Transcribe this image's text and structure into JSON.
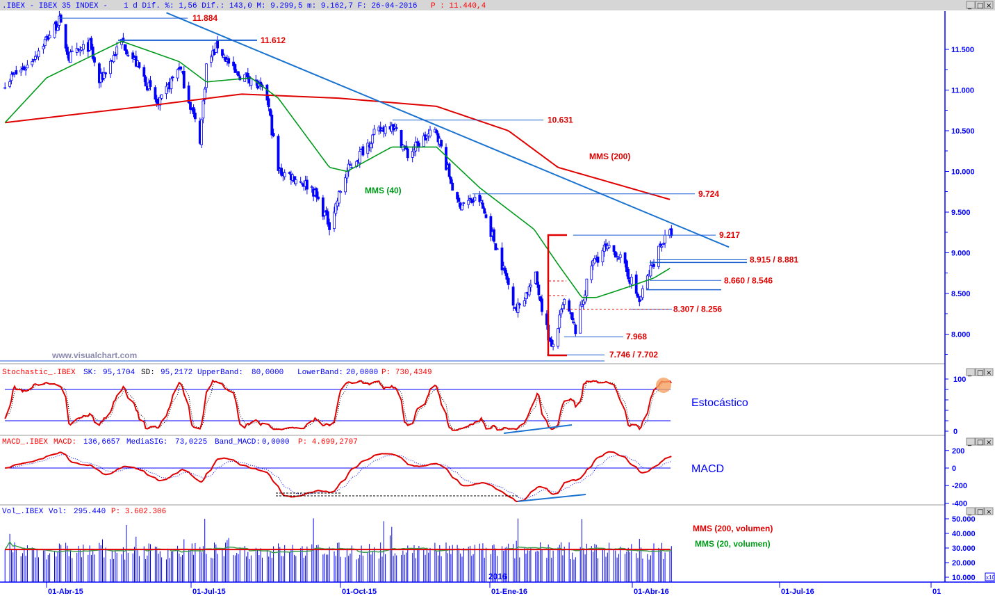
{
  "title_bar": {
    "symbol": ".IBEX - IBEX 35 INDEX -",
    "info": "1 d Dif. %: 1,56 Dif.: 143,0 M: 9.299,5 m: 9.162,7 F: 26-04-2016",
    "p": "P : 11.440,4"
  },
  "window_buttons": {
    "minimize": "_",
    "maximize": "□",
    "close": "×"
  },
  "colors": {
    "candle": "#0000ff",
    "mms200": "#e00000",
    "mms40": "#009a1a",
    "trendline": "#1a73d0",
    "level_line": "#1a5fd0",
    "label": "#e00000",
    "axis": "#0000ff"
  },
  "watermark": "www.visualchart.com",
  "price_panel": {
    "mms200_label": "MMS (200)",
    "mms40_label": "MMS (40)",
    "levels": [
      {
        "label": "11.884",
        "value": 11884
      },
      {
        "label": "11.612",
        "value": 11612
      },
      {
        "label": "10.631",
        "value": 10631
      },
      {
        "label": "9.724",
        "value": 9724
      },
      {
        "label": "9.217",
        "value": 9217
      },
      {
        "label": "8.915 / 8.881",
        "value": 8915
      },
      {
        "label": "8.660 / 8.546",
        "value": 8660
      },
      {
        "label": "8.307 / 8.256",
        "value": 8307
      },
      {
        "label": "7.968",
        "value": 7968
      },
      {
        "label": "7.746 / 7.702",
        "value": 7746
      }
    ],
    "y_ticks": [
      "11.500",
      "11.000",
      "10.500",
      "10.000",
      "9.500",
      "9.000",
      "8.500",
      "8.000"
    ]
  },
  "stoch_panel": {
    "header": {
      "name": "Stochastic_.IBEX",
      "sk_label": "SK:",
      "sk": "95,1704",
      "sd_label": "SD:",
      "sd": "95,2172",
      "ub_label": "UpperBand:",
      "ub": "80,0000",
      "lb_label": "LowerBand:",
      "lb": "20,0000",
      "p": "P: 730,4349"
    },
    "annotation": "Estocástico",
    "y_ticks": [
      "100",
      "0"
    ]
  },
  "macd_panel": {
    "header": {
      "name": "MACD_.IBEX",
      "macd_label": "MACD:",
      "macd": "136,6657",
      "sig_label": "MediaSIG:",
      "sig": "73,0225",
      "band_label": "Band_MACD:",
      "band": "0,0000",
      "p": "P: 4.699,2707"
    },
    "annotation": "MACD",
    "y_ticks": [
      "200",
      "0",
      "-200",
      "-400"
    ]
  },
  "vol_panel": {
    "header": {
      "name": "Vol_.IBEX",
      "vol_label": "Vol:",
      "vol": "295.440",
      "p": "P: 3.602.306"
    },
    "mms200_label": "MMS (200, volumen)",
    "mms20_label": "MMS (20, volumen)",
    "year_marker": "2016",
    "multiplier": "x10",
    "y_ticks": [
      "50.000",
      "40.000",
      "30.000",
      "20.000",
      "10.000"
    ]
  },
  "x_axis": {
    "ticks": [
      "01-Abr-15",
      "01-Jul-15",
      "01-Oct-15",
      "01-Ene-16",
      "01-Abr-16",
      "01-Jul-16",
      "01"
    ]
  },
  "chart_data": {
    "type": "candlestick",
    "title": ".IBEX - IBEX 35 INDEX",
    "ylim": [
      7600,
      11950
    ],
    "grid": false,
    "close_keypoints": [
      [
        "2015-03-06",
        11100
      ],
      [
        "2015-03-20",
        11300
      ],
      [
        "2015-04-09",
        11850
      ],
      [
        "2015-04-15",
        11400
      ],
      [
        "2015-04-28",
        11550
      ],
      [
        "2015-05-04",
        11100
      ],
      [
        "2015-05-18",
        11600
      ],
      [
        "2015-05-28",
        11300
      ],
      [
        "2015-06-10",
        10800
      ],
      [
        "2015-06-23",
        11300
      ],
      [
        "2015-07-06",
        10400
      ],
      [
        "2015-07-10",
        11300
      ],
      [
        "2015-07-17",
        11550
      ],
      [
        "2015-07-28",
        11200
      ],
      [
        "2015-08-07",
        11150
      ],
      [
        "2015-08-17",
        10900
      ],
      [
        "2015-08-24",
        10000
      ],
      [
        "2015-09-01",
        9950
      ],
      [
        "2015-09-14",
        9800
      ],
      [
        "2015-09-25",
        9350
      ],
      [
        "2015-10-06",
        10000
      ],
      [
        "2015-10-23",
        10450
      ],
      [
        "2015-11-03",
        10600
      ],
      [
        "2015-11-13",
        10200
      ],
      [
        "2015-11-23",
        10400
      ],
      [
        "2015-12-01",
        10500
      ],
      [
        "2015-12-14",
        9600
      ],
      [
        "2015-12-28",
        9650
      ],
      [
        "2016-01-07",
        9100
      ],
      [
        "2016-01-20",
        8300
      ],
      [
        "2016-02-01",
        8700
      ],
      [
        "2016-02-11",
        7800
      ],
      [
        "2016-02-19",
        8400
      ],
      [
        "2016-02-26",
        8050
      ],
      [
        "2016-03-07",
        8850
      ],
      [
        "2016-03-15",
        9050
      ],
      [
        "2016-03-23",
        9000
      ],
      [
        "2016-04-01",
        8650
      ],
      [
        "2016-04-06",
        8400
      ],
      [
        "2016-04-12",
        8750
      ],
      [
        "2016-04-19",
        9100
      ],
      [
        "2016-04-26",
        9250
      ]
    ],
    "mms40": [
      [
        "2015-03-06",
        10600
      ],
      [
        "2015-04-01",
        11150
      ],
      [
        "2015-05-18",
        11600
      ],
      [
        "2015-06-23",
        11350
      ],
      [
        "2015-07-10",
        11100
      ],
      [
        "2015-08-07",
        11150
      ],
      [
        "2015-08-24",
        10900
      ],
      [
        "2015-09-25",
        10050
      ],
      [
        "2015-10-06",
        10000
      ],
      [
        "2015-11-03",
        10300
      ],
      [
        "2015-12-01",
        10300
      ],
      [
        "2015-12-28",
        9800
      ],
      [
        "2016-01-31",
        9290
      ],
      [
        "2016-02-15",
        8860
      ],
      [
        "2016-03-01",
        8450
      ],
      [
        "2016-03-10",
        8450
      ],
      [
        "2016-03-30",
        8580
      ],
      [
        "2016-04-15",
        8690
      ],
      [
        "2016-04-26",
        8820
      ]
    ],
    "mms200": [
      [
        "2015-03-06",
        10600
      ],
      [
        "2015-06-01",
        10800
      ],
      [
        "2015-08-01",
        10950
      ],
      [
        "2015-10-01",
        10900
      ],
      [
        "2015-12-01",
        10800
      ],
      [
        "2016-01-15",
        10500
      ],
      [
        "2016-02-15",
        10050
      ],
      [
        "2016-04-26",
        9650
      ]
    ],
    "trendline": [
      [
        "2015-06-15",
        11950
      ],
      [
        "2016-06-01",
        9070
      ]
    ],
    "stoch_bands": {
      "upper": 80,
      "lower": 20
    },
    "volume_mms200": 29000
  }
}
